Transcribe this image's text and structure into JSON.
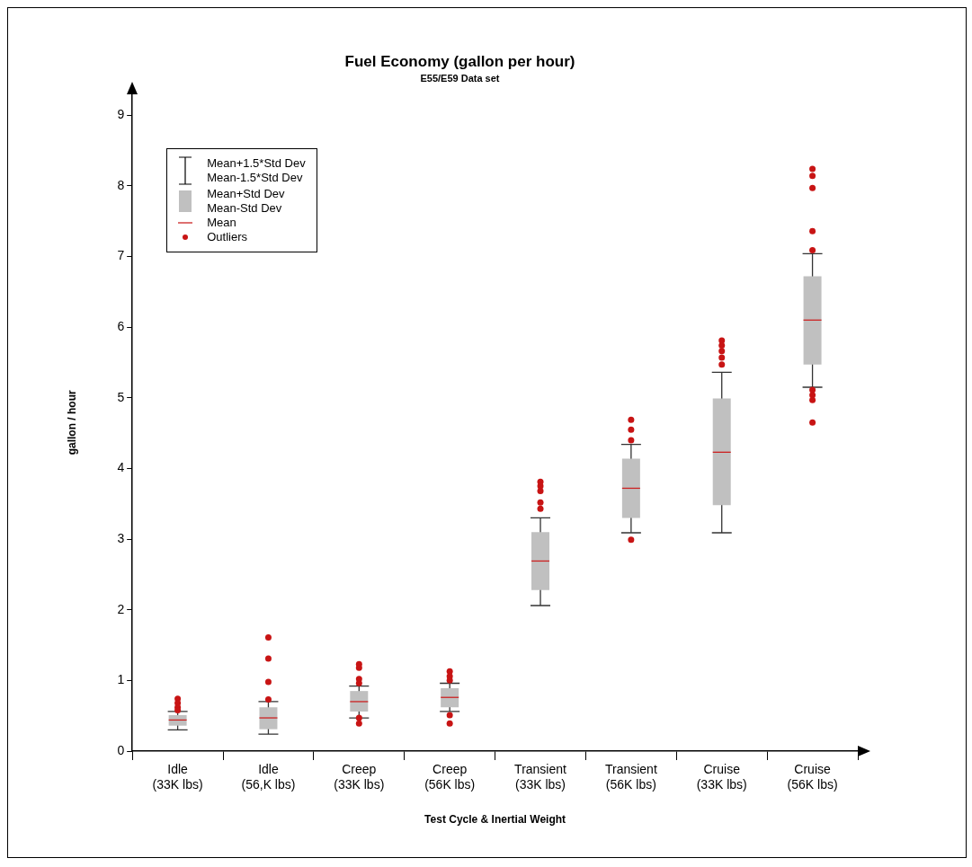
{
  "chart_data": {
    "type": "box",
    "title": "Fuel Economy (gallon per hour)",
    "subtitle": "E55/E59 Data set",
    "xlabel": "Test Cycle & Inertial Weight",
    "ylabel": "gallon / hour",
    "categories": [
      "Idle (33K lbs)",
      "Idle (56,K lbs)",
      "Creep (33K lbs)",
      "Creep (56K lbs)",
      "Transient (33K lbs)",
      "Transient (56K lbs)",
      "Cruise (33K lbs)",
      "Cruise (56K lbs)"
    ],
    "ylim": [
      0,
      9.3
    ],
    "yticks": [
      0,
      1,
      2,
      3,
      4,
      5,
      6,
      7,
      8,
      9
    ],
    "grid": false,
    "annotations": [
      "Mean+1.5*Std Dev",
      "Mean-1.5*Std Dev",
      "Mean+Std Dev",
      "Mean-Std Dev",
      "Mean",
      "Outliers"
    ],
    "series": [
      {
        "color": "#c0c0c0",
        "boxes": [
          {
            "low": 0.3,
            "q1": 0.36,
            "median": 0.44,
            "q3": 0.51,
            "high": 0.56,
            "outliers": [
              0.74,
              0.68,
              0.62,
              0.58
            ]
          },
          {
            "low": 0.24,
            "q1": 0.31,
            "median": 0.47,
            "q3": 0.62,
            "high": 0.7,
            "outliers": [
              1.61,
              1.31,
              0.98,
              0.73
            ]
          },
          {
            "low": 0.47,
            "q1": 0.56,
            "median": 0.7,
            "q3": 0.85,
            "high": 0.92,
            "outliers": [
              1.23,
              1.18,
              1.02,
              0.96,
              0.47,
              0.39
            ]
          },
          {
            "low": 0.56,
            "q1": 0.62,
            "median": 0.76,
            "q3": 0.89,
            "high": 0.96,
            "outliers": [
              1.13,
              1.06,
              1.0,
              0.51,
              0.39
            ]
          },
          {
            "low": 2.06,
            "q1": 2.28,
            "median": 2.69,
            "q3": 3.1,
            "high": 3.3,
            "outliers": [
              3.81,
              3.75,
              3.68,
              3.52,
              3.43
            ]
          },
          {
            "low": 3.09,
            "q1": 3.3,
            "median": 3.72,
            "q3": 4.14,
            "high": 4.34,
            "outliers": [
              4.69,
              4.55,
              4.4,
              2.99
            ]
          },
          {
            "low": 3.09,
            "q1": 3.48,
            "median": 4.23,
            "q3": 4.99,
            "high": 5.36,
            "outliers": [
              5.81,
              5.74,
              5.66,
              5.57,
              5.47
            ]
          },
          {
            "low": 5.15,
            "q1": 5.47,
            "median": 6.1,
            "q3": 6.72,
            "high": 7.04,
            "outliers": [
              8.24,
              8.14,
              7.97,
              7.36,
              7.09,
              5.11,
              5.04,
              4.97,
              4.65
            ]
          }
        ]
      }
    ]
  }
}
